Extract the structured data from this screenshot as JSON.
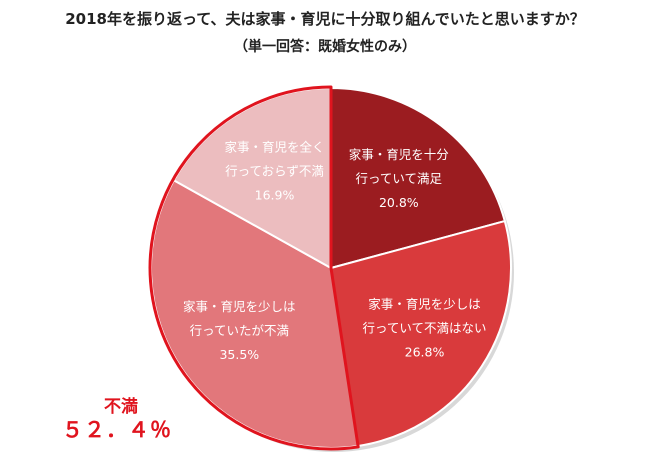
{
  "header": {
    "title": "2018年を振り返って、夫は家事・育児に十分取り組んでいたと思いますか？",
    "subtitle": "（単一回答：既婚女性のみ）"
  },
  "chart_data": {
    "type": "pie",
    "title": "2018年を振り返って、夫は家事・育児に十分取り組んでいたと思いますか？",
    "subtitle": "（単一回答：既婚女性のみ）",
    "start_angle_deg": 0,
    "direction": "clockwise",
    "slices": [
      {
        "label_lines": [
          "家事・育児を十分",
          "行っていて満足"
        ],
        "value": 20.8,
        "value_label": "20.8%",
        "color": "#9b1c20",
        "text_color": "#ffffff"
      },
      {
        "label_lines": [
          "家事・育児を少しは",
          "行っていて不満はない"
        ],
        "value": 26.8,
        "value_label": "26.8%",
        "color": "#d93a3c",
        "text_color": "#ffffff"
      },
      {
        "label_lines": [
          "家事・育児を少しは",
          "行っていたが不満"
        ],
        "value": 35.5,
        "value_label": "35.5%",
        "color": "#e2777b",
        "text_color": "#ffffff"
      },
      {
        "label_lines": [
          "家事・育児を全く",
          "行っておらず不満"
        ],
        "value": 16.9,
        "value_label": "16.9%",
        "color": "#ecbdbf",
        "text_color": "#333333"
      }
    ],
    "highlight_group": {
      "slices": [
        2,
        3
      ],
      "outline_color": "#e0141e",
      "label": "不満",
      "value_label": "５２．４％"
    }
  }
}
